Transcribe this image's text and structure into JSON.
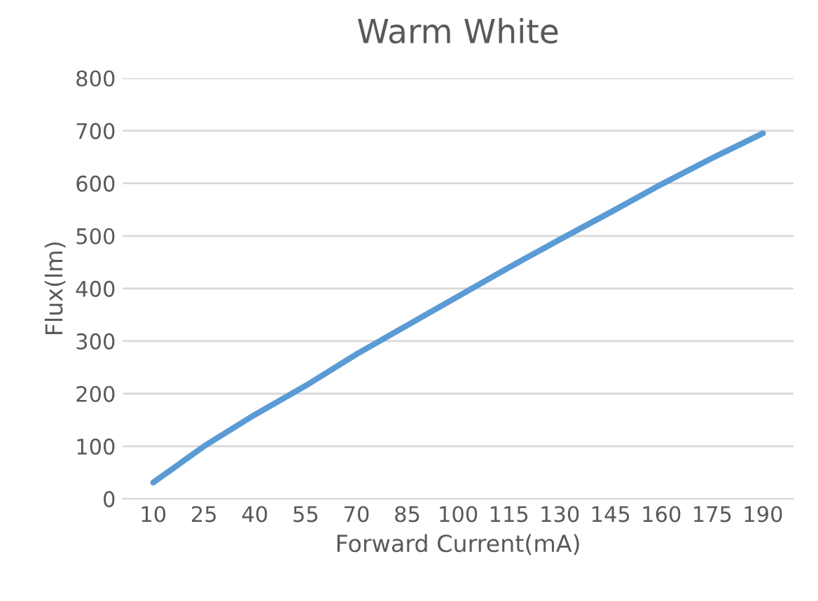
{
  "chart_data": {
    "type": "line",
    "title": "Warm White",
    "xlabel": "Forward Current(mA)",
    "ylabel": "Flux(lm)",
    "categories": [
      "10",
      "25",
      "40",
      "55",
      "70",
      "85",
      "100",
      "115",
      "130",
      "145",
      "160",
      "175",
      "190"
    ],
    "series": [
      {
        "color": "#5b9bd5",
        "values": [
          31,
          100,
          160,
          215,
          275,
          330,
          385,
          440,
          493,
          545,
          598,
          648,
          695
        ]
      }
    ],
    "ylim": [
      0,
      800
    ],
    "yticks": [
      0,
      100,
      200,
      300,
      400,
      500,
      600,
      700,
      800
    ],
    "grid": "y",
    "marker": "none",
    "line_style": "solid"
  }
}
